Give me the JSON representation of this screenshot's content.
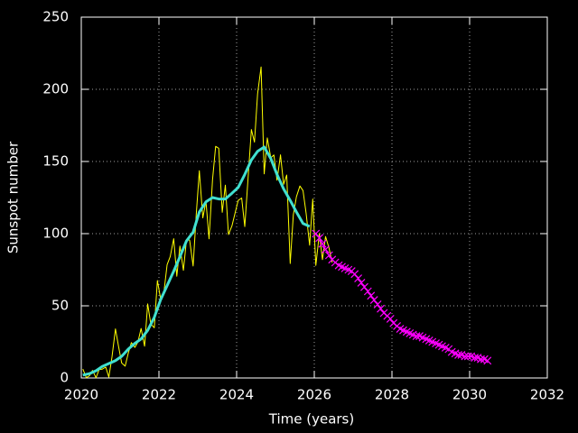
{
  "chart_data": {
    "type": "line",
    "xlabel": "Time (years)",
    "ylabel": "Sunspot number",
    "xlim": [
      2020,
      2032
    ],
    "xticks": [
      2020,
      2022,
      2024,
      2026,
      2028,
      2030,
      2032
    ],
    "ylim": [
      0,
      250
    ],
    "yticks": [
      0,
      50,
      100,
      150,
      200,
      250
    ],
    "grid": true,
    "series": [
      {
        "color": "#ffff00",
        "width": 1,
        "marker": "none",
        "x": [
          2020.04,
          2020.13,
          2020.21,
          2020.29,
          2020.38,
          2020.46,
          2020.54,
          2020.63,
          2020.71,
          2020.79,
          2020.88,
          2020.96,
          2021.04,
          2021.13,
          2021.21,
          2021.29,
          2021.38,
          2021.46,
          2021.54,
          2021.63,
          2021.71,
          2021.79,
          2021.88,
          2021.96,
          2022.04,
          2022.13,
          2022.21,
          2022.29,
          2022.38,
          2022.46,
          2022.54,
          2022.63,
          2022.71,
          2022.79,
          2022.88,
          2022.96,
          2023.04,
          2023.13,
          2023.21,
          2023.29,
          2023.38,
          2023.46,
          2023.54,
          2023.63,
          2023.71,
          2023.79,
          2023.88,
          2023.96,
          2024.04,
          2024.13,
          2024.21,
          2024.29,
          2024.38,
          2024.46,
          2024.54,
          2024.63,
          2024.71,
          2024.79,
          2024.88,
          2024.96,
          2025.04,
          2025.13,
          2025.21,
          2025.29,
          2025.38,
          2025.46,
          2025.54,
          2025.63,
          2025.71,
          2025.79,
          2025.88,
          2025.96,
          2026.04,
          2026.13,
          2026.21,
          2026.29,
          2026.38,
          2026.46
        ],
        "values": [
          6.2,
          0.2,
          1.5,
          5.2,
          0.2,
          5.8,
          6.1,
          7.5,
          0.6,
          14.4,
          34.0,
          21.8,
          10.4,
          8.2,
          17.2,
          24.5,
          21.2,
          25.0,
          34.3,
          22.0,
          51.3,
          37.4,
          34.8,
          67.5,
          55.3,
          59.9,
          78.5,
          84.1,
          96.5,
          70.5,
          91.4,
          74.6,
          96.0,
          95.5,
          77.6,
          113.1,
          143.6,
          110.9,
          122.6,
          96.4,
          137.4,
          160.5,
          159.1,
          114.8,
          133.6,
          99.4,
          105.4,
          114.2,
          123.0,
          124.7,
          104.9,
          136.5,
          172.1,
          163.4,
          196.8,
          215.5,
          141.4,
          166.3,
          152.5,
          154.5,
          137.0,
          154.6,
          134.2,
          140.6,
          79.3,
          113.0,
          125.6,
          133.0,
          129.8,
          114.0,
          92.0,
          124.0,
          78,
          100,
          82,
          98,
          90,
          80
        ]
      },
      {
        "color": "#40e0d0",
        "width": 3,
        "marker": "none",
        "x": [
          2020.04,
          2020.21,
          2020.38,
          2020.54,
          2020.71,
          2020.88,
          2021.04,
          2021.21,
          2021.38,
          2021.54,
          2021.71,
          2021.88,
          2022.04,
          2022.21,
          2022.38,
          2022.54,
          2022.71,
          2022.88,
          2023.04,
          2023.21,
          2023.38,
          2023.54,
          2023.71,
          2023.88,
          2024.04,
          2024.21,
          2024.38,
          2024.54,
          2024.71,
          2024.88,
          2025.04,
          2025.21,
          2025.38,
          2025.54,
          2025.71,
          2025.88
        ],
        "values": [
          2,
          3,
          5,
          8,
          10,
          12,
          15,
          20,
          24,
          27,
          33,
          42,
          54,
          64,
          74,
          84,
          95,
          101,
          115,
          122,
          125,
          124,
          124,
          128,
          132,
          141,
          151,
          157,
          160,
          152,
          141,
          131,
          123,
          115,
          107,
          105
        ]
      },
      {
        "color": "#ff00ff",
        "width": 1,
        "marker": "x",
        "x": [
          2026.04,
          2026.13,
          2026.21,
          2026.29,
          2026.38,
          2026.46,
          2026.54,
          2026.63,
          2026.71,
          2026.79,
          2026.88,
          2026.96,
          2027.04,
          2027.13,
          2027.21,
          2027.29,
          2027.38,
          2027.46,
          2027.54,
          2027.63,
          2027.71,
          2027.79,
          2027.88,
          2027.96,
          2028.04,
          2028.13,
          2028.21,
          2028.29,
          2028.38,
          2028.46,
          2028.54,
          2028.63,
          2028.71,
          2028.79,
          2028.88,
          2028.96,
          2029.04,
          2029.13,
          2029.21,
          2029.29,
          2029.38,
          2029.46,
          2029.54,
          2029.63,
          2029.71,
          2029.79,
          2029.88,
          2029.96,
          2030.04,
          2030.13,
          2030.21,
          2030.29,
          2030.38,
          2030.46
        ],
        "values": [
          100,
          97,
          93,
          89,
          85,
          82,
          80,
          78,
          77,
          76,
          75,
          74,
          72,
          69,
          66,
          63,
          60,
          57,
          54,
          51,
          48,
          45,
          43,
          41,
          38,
          36,
          34,
          33,
          32,
          31,
          30,
          29,
          29,
          28,
          27,
          26,
          25,
          24,
          23,
          22,
          21,
          20,
          18,
          17,
          16,
          16,
          15,
          15,
          15,
          14,
          14,
          13,
          13,
          12
        ]
      }
    ]
  }
}
